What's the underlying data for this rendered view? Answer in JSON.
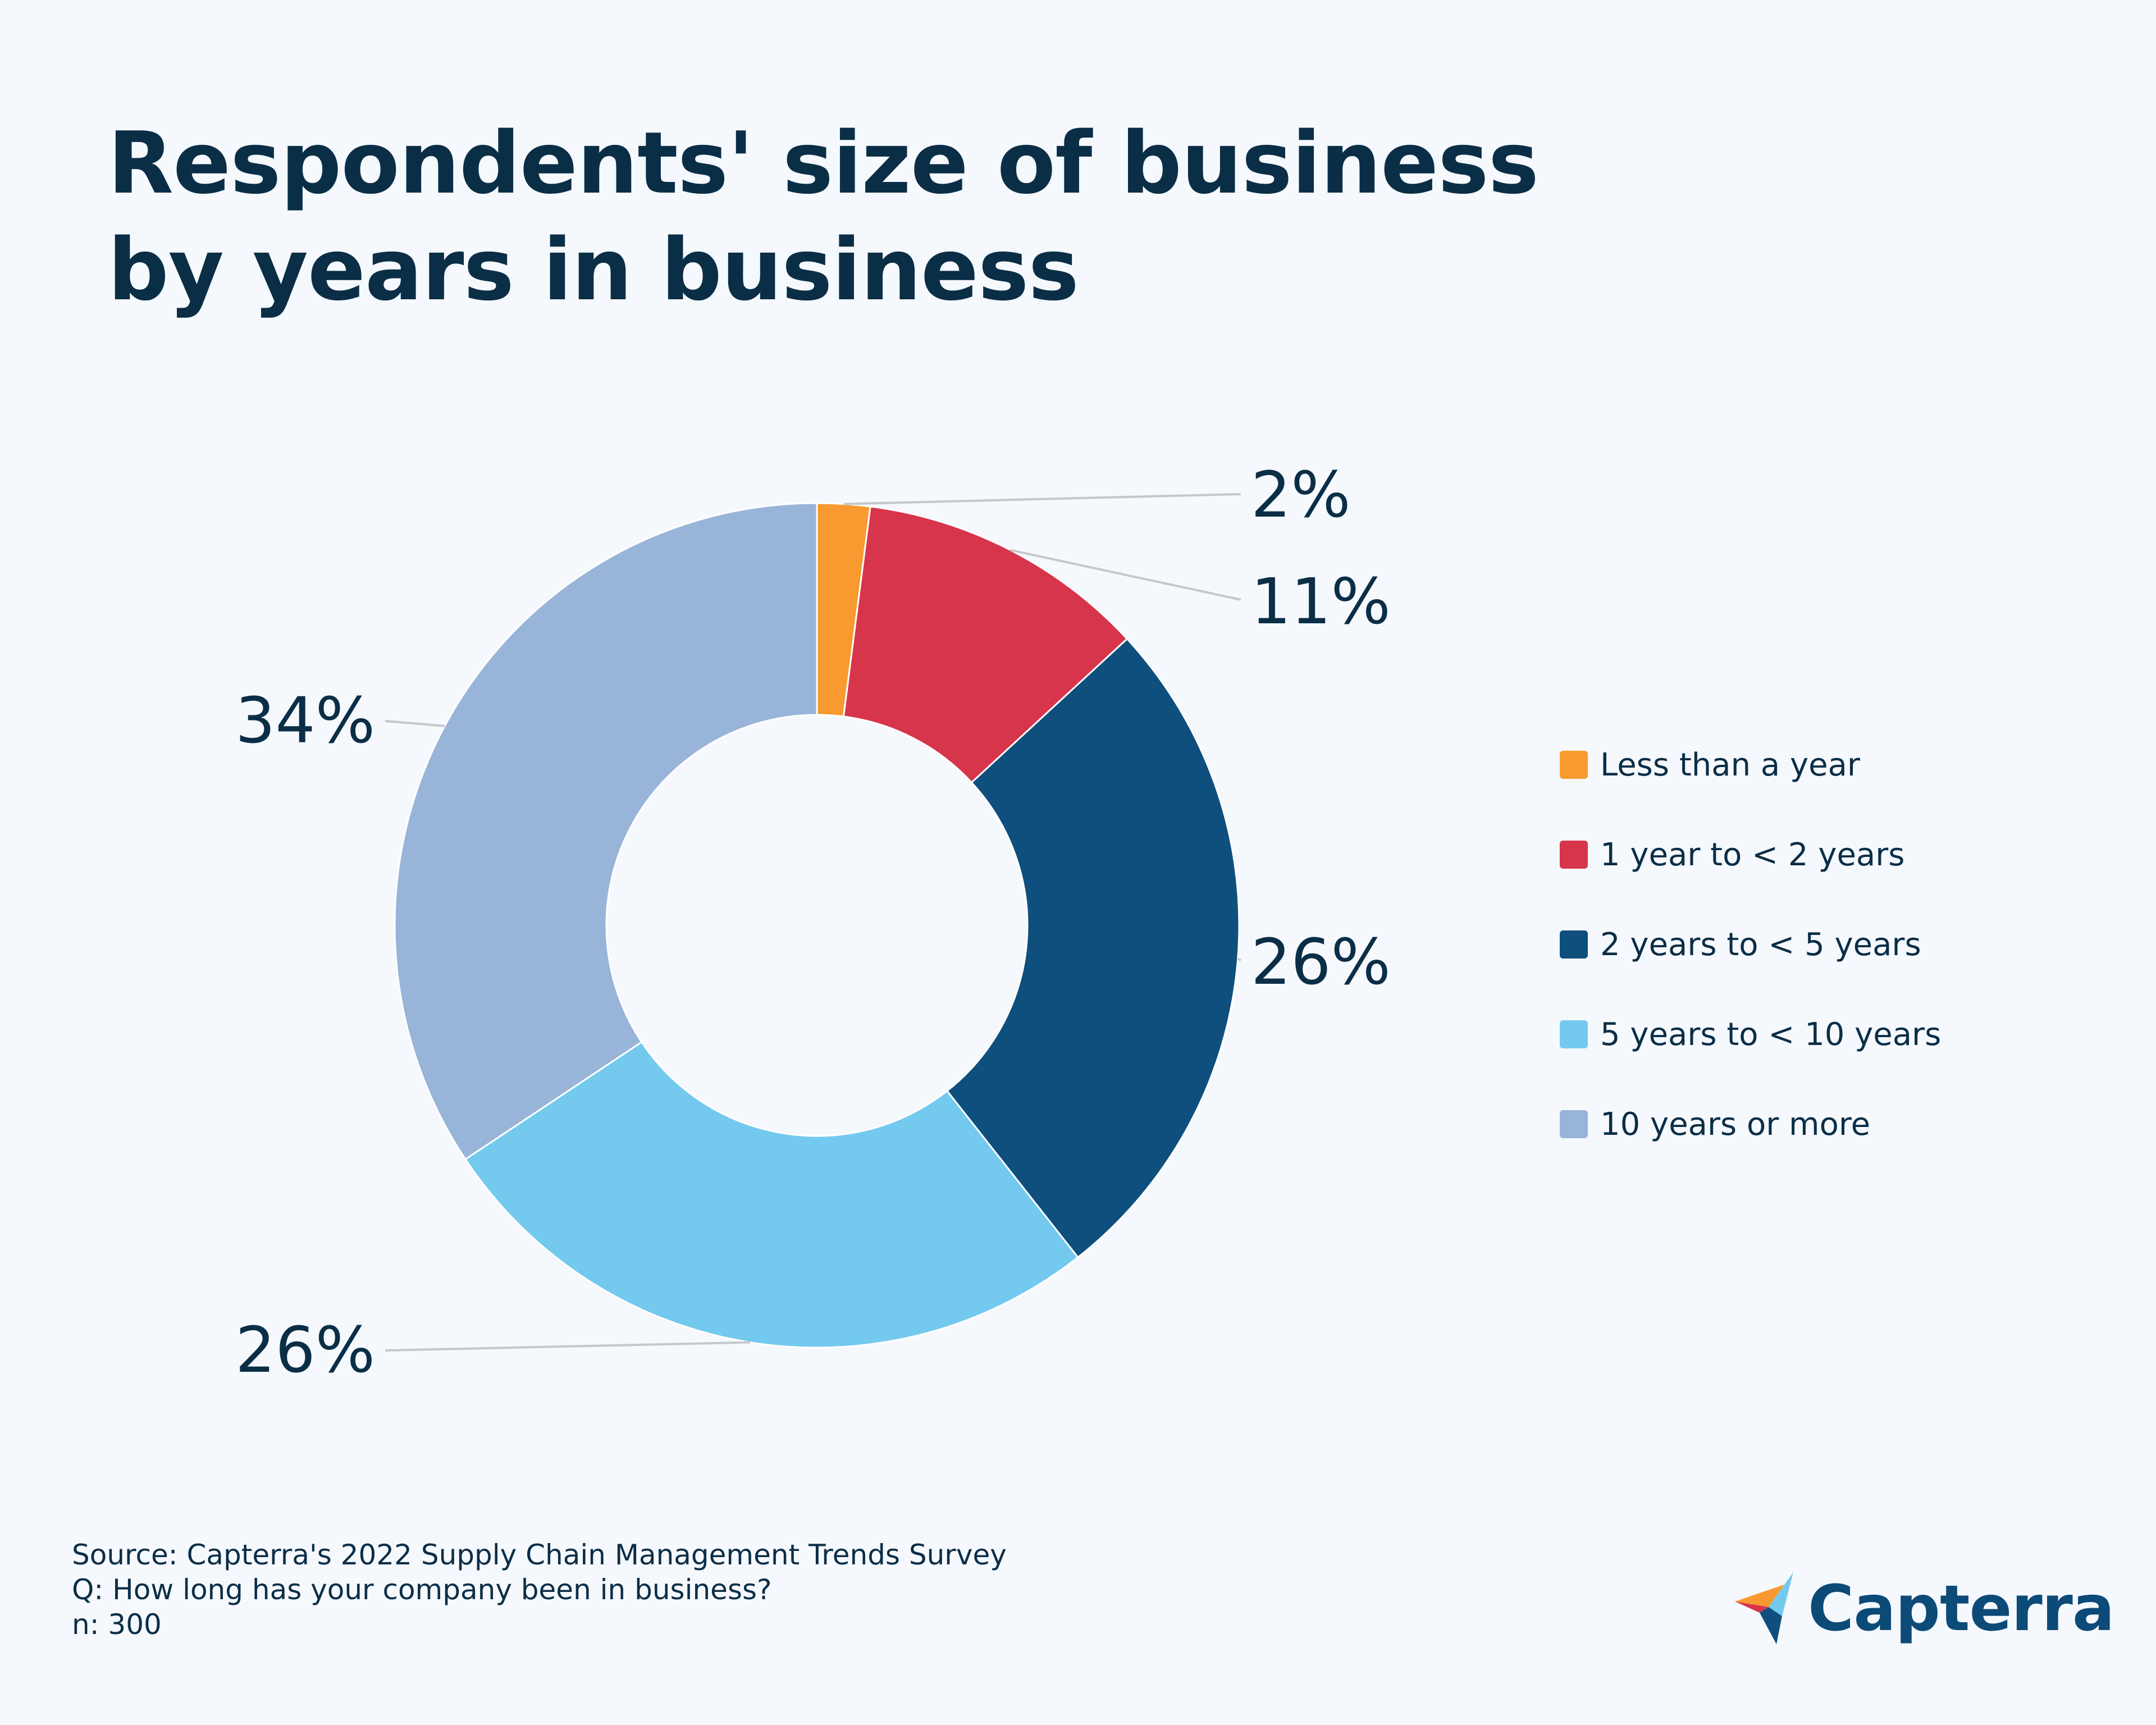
{
  "chart_data": {
    "type": "pie",
    "style": "donut",
    "title": "Respondents' size of business by years in business",
    "categories": [
      "Less than a year",
      "1 year to < 2 years",
      "2 years to < 5 years",
      "5 years to < 10 years",
      "10 years or more"
    ],
    "values": [
      2,
      11,
      26,
      26,
      34
    ],
    "value_labels": [
      "2%",
      "11%",
      "26%",
      "26%",
      "34%"
    ],
    "colors": [
      "#f89a30",
      "#d7354b",
      "#0e4f7d",
      "#74c9ee",
      "#99b4d9"
    ],
    "legend_position": "right"
  },
  "footer": {
    "source": "Source: Capterra's 2022 Supply Chain Management Trends Survey",
    "question": "Q: How long has your company been in business?",
    "sample": "n: 300"
  },
  "brand": {
    "name": "Capterra",
    "logo_icon": "capterra-arrow-logo-icon"
  }
}
